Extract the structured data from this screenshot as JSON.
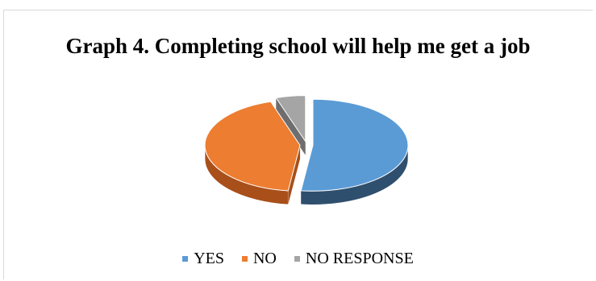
{
  "chart_data": {
    "type": "pie",
    "title": "Graph 4.  Completing school will help me get a job",
    "categories": [
      "YES",
      "NO",
      "NO RESPONSE"
    ],
    "values": [
      52,
      43,
      5
    ],
    "colors": [
      "#5b9bd5",
      "#ed7d31",
      "#a5a5a5"
    ],
    "side_colors": [
      "#2f4f6e",
      "#a84f1a",
      "#6e6e6e"
    ],
    "legend_position": "bottom",
    "style": "3d-exploded"
  }
}
